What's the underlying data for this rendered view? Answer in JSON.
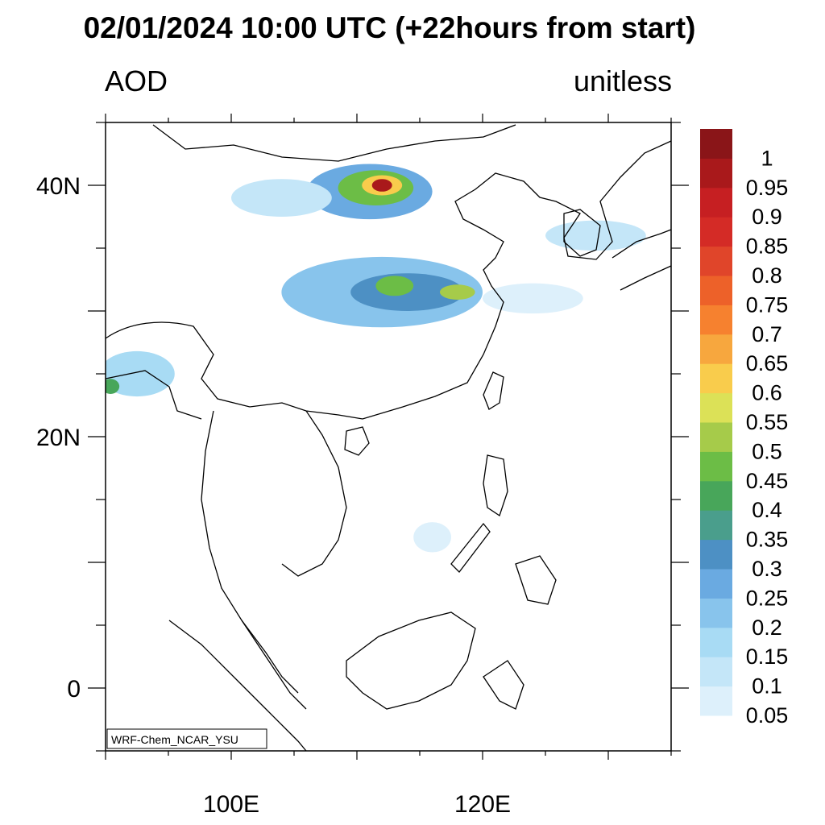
{
  "title": "02/01/2024 10:00 UTC (+22hours from start)",
  "left_label": "AOD",
  "right_label": "unitless",
  "credit": "WRF-Chem_NCAR_YSU",
  "axes": {
    "lon_range": [
      90,
      135
    ],
    "lat_range": [
      -5,
      45
    ],
    "x_ticks": [
      {
        "value": 100,
        "label": "100E"
      },
      {
        "value": 120,
        "label": "120E"
      }
    ],
    "y_ticks": [
      {
        "value": 40,
        "label": "40N"
      },
      {
        "value": 20,
        "label": "20N"
      },
      {
        "value": 0,
        "label": "0"
      }
    ]
  },
  "colorbar": {
    "colors": [
      "#ddf0fb",
      "#c4e6f8",
      "#a8dbf4",
      "#88c4ec",
      "#6aaae1",
      "#4d90c4",
      "#4a9e8c",
      "#48a65a",
      "#6cbd46",
      "#a6cb4a",
      "#dce157",
      "#f9cc4c",
      "#f7a73e",
      "#f6812f",
      "#ed6129",
      "#e0452a",
      "#d42b26",
      "#c61f22",
      "#a9191b",
      "#8a1518"
    ],
    "labels": [
      "0.05",
      "0.1",
      "0.15",
      "0.2",
      "0.25",
      "0.3",
      "0.35",
      "0.4",
      "0.45",
      "0.5",
      "0.55",
      "0.6",
      "0.65",
      "0.7",
      "0.75",
      "0.8",
      "0.85",
      "0.9",
      "0.95",
      "1"
    ]
  },
  "aod_features": [
    {
      "name": "plume-inner-mongolia-outer",
      "cx": 111,
      "cy": 39.5,
      "rx": 5,
      "ry": 2.2,
      "color": "#6aaae1"
    },
    {
      "name": "plume-inner-mongolia-mid",
      "cx": 111.5,
      "cy": 39.8,
      "rx": 3,
      "ry": 1.4,
      "color": "#6cbd46"
    },
    {
      "name": "plume-inner-mongolia-high",
      "cx": 112,
      "cy": 40,
      "rx": 1.6,
      "ry": 0.8,
      "color": "#f9cc4c"
    },
    {
      "name": "plume-inner-mongolia-peak",
      "cx": 112,
      "cy": 40,
      "rx": 0.8,
      "ry": 0.5,
      "color": "#a9191b"
    },
    {
      "name": "haze-central-china",
      "cx": 112,
      "cy": 31.5,
      "rx": 8,
      "ry": 2.8,
      "color": "#88c4ec"
    },
    {
      "name": "haze-central-china-core",
      "cx": 114,
      "cy": 31.5,
      "rx": 4.5,
      "ry": 1.5,
      "color": "#4d90c4"
    },
    {
      "name": "haze-wuhan",
      "cx": 113,
      "cy": 32,
      "rx": 1.5,
      "ry": 0.8,
      "color": "#6cbd46"
    },
    {
      "name": "haze-yangtze",
      "cx": 118,
      "cy": 31.5,
      "rx": 1.4,
      "ry": 0.6,
      "color": "#a6cb4a"
    },
    {
      "name": "haze-northwest",
      "cx": 104,
      "cy": 39,
      "rx": 4,
      "ry": 1.5,
      "color": "#c4e6f8"
    },
    {
      "name": "haze-korea",
      "cx": 129,
      "cy": 36,
      "rx": 4,
      "ry": 1.2,
      "color": "#c4e6f8"
    },
    {
      "name": "haze-east-china-sea",
      "cx": 124,
      "cy": 31,
      "rx": 4,
      "ry": 1.2,
      "color": "#ddf0fb"
    },
    {
      "name": "haze-myanmar",
      "cx": 92.5,
      "cy": 25,
      "rx": 3,
      "ry": 1.8,
      "color": "#a8dbf4"
    },
    {
      "name": "haze-bangladesh-core",
      "cx": 90.4,
      "cy": 24,
      "rx": 0.7,
      "ry": 0.6,
      "color": "#48a65a"
    },
    {
      "name": "haze-south-china-sea",
      "cx": 116,
      "cy": 12,
      "rx": 1.5,
      "ry": 1.2,
      "color": "#ddf0fb"
    }
  ]
}
